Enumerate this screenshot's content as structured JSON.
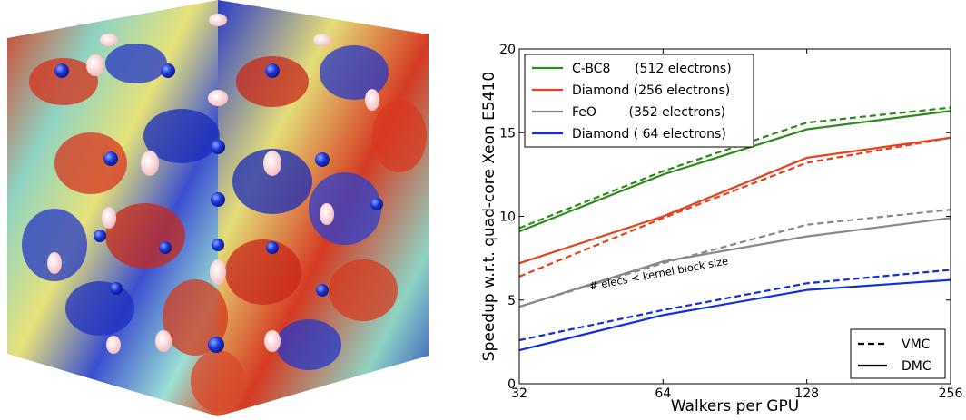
{
  "chart_data": {
    "type": "line",
    "xlabel": "Walkers per GPU",
    "ylabel": "Speedup w.r.t. quad-core Xeon E5410",
    "x_scale": "log2",
    "x": [
      32,
      64,
      128,
      256
    ],
    "x_ticks": [
      "32",
      "64",
      "128",
      "256"
    ],
    "ylim": [
      0,
      20
    ],
    "y_ticks": [
      "0",
      "5",
      "10",
      "15",
      "20"
    ],
    "grid": false,
    "legend_placement": "top-left",
    "series": [
      {
        "name": "C-BC8      (512 electrons)",
        "color": "#2e8b1a",
        "dmc": [
          9.1,
          12.5,
          15.2,
          16.3
        ],
        "vmc": [
          9.3,
          12.7,
          15.6,
          16.5
        ]
      },
      {
        "name": "Diamond (256 electrons)",
        "color": "#e8401c",
        "dmc": [
          7.2,
          10.0,
          13.5,
          14.7
        ],
        "vmc": [
          6.4,
          9.9,
          13.2,
          14.7
        ]
      },
      {
        "name": "FeO        (352 electrons)",
        "color": "#888888",
        "dmc": [
          4.6,
          7.3,
          8.8,
          9.9
        ],
        "vmc": [
          4.6,
          7.2,
          9.5,
          10.4
        ]
      },
      {
        "name": "Diamond ( 64 electrons)",
        "color": "#1030e0",
        "dmc": [
          2.0,
          4.1,
          5.6,
          6.2
        ],
        "vmc": [
          2.6,
          4.4,
          6.0,
          6.8
        ]
      }
    ],
    "method_legend": [
      {
        "label": "VMC",
        "style": "dashed"
      },
      {
        "label": "DMC",
        "style": "solid"
      }
    ],
    "annotation": "# elecs < kernel block size"
  }
}
